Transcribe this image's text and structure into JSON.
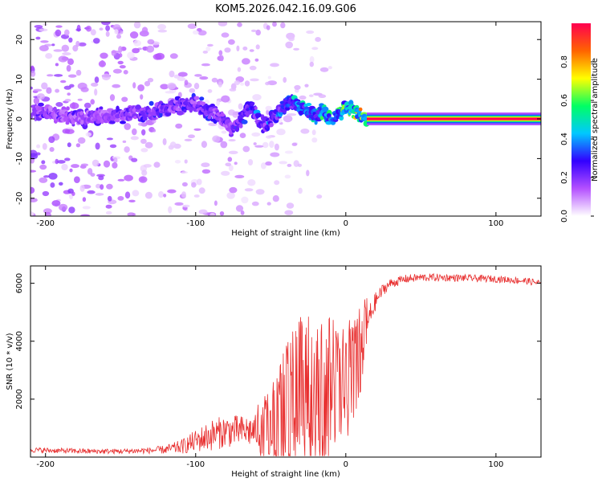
{
  "title": "KOM5.2026.042.16.09.G06",
  "chart_data": [
    {
      "type": "heatmap",
      "name": "spectrogram",
      "xlabel": "Height of straight line (km)",
      "ylabel": "Frequency (Hz)",
      "xlim": [
        -210,
        130
      ],
      "ylim": [
        -24.5,
        24.5
      ],
      "x_ticks": [
        -200,
        -100,
        0,
        100
      ],
      "y_ticks": [
        -20,
        -10,
        0,
        10,
        20
      ],
      "x_tick_labels": [
        "-200",
        "-100",
        "0",
        "100"
      ],
      "y_tick_labels": [
        "-20",
        "-10",
        "0",
        "10",
        "20"
      ],
      "colorbar": {
        "label": "Normalized spectral amplitude",
        "range": [
          0,
          1
        ],
        "ticks": [
          0,
          0.2,
          0.4,
          0.6,
          0.8
        ],
        "tick_labels": [
          "0.0",
          "0.2",
          "0.4",
          "0.6",
          "0.8"
        ],
        "colormap": [
          "#ffffff",
          "#b450ff",
          "#3200ff",
          "#00c8ff",
          "#00ff64",
          "#ffff00",
          "#ff6400",
          "#ff0050"
        ]
      },
      "ridge": {
        "x": [
          -205,
          -190,
          -175,
          -160,
          -145,
          -130,
          -115,
          -100,
          -92,
          -85,
          -80,
          -75,
          -68,
          -62,
          -55,
          -48,
          -42,
          -36,
          -30,
          -25,
          -20,
          -15,
          -10,
          -5,
          0,
          5,
          10,
          14
        ],
        "f": [
          2,
          1,
          0,
          1,
          1,
          2,
          3,
          4,
          2,
          1,
          -1,
          -3,
          1,
          3,
          -2,
          0,
          3,
          4,
          3,
          2,
          1,
          2,
          0,
          1,
          3,
          2,
          1,
          0
        ],
        "amp": [
          0.25,
          0.25,
          0.25,
          0.25,
          0.28,
          0.3,
          0.3,
          0.32,
          0.35,
          0.3,
          0.3,
          0.32,
          0.35,
          0.4,
          0.35,
          0.38,
          0.45,
          0.45,
          0.5,
          0.55,
          0.55,
          0.6,
          0.55,
          0.6,
          0.65,
          0.7,
          0.8,
          0.9
        ]
      },
      "line": {
        "x_start": 14,
        "x_end": 130,
        "f": 0,
        "amp": 1.0
      }
    },
    {
      "type": "line",
      "name": "snr",
      "xlabel": "Height of straight line (km)",
      "ylabel": "SNR (10 * v/v)",
      "xlim": [
        -210,
        130
      ],
      "ylim": [
        0,
        6600
      ],
      "x_ticks": [
        -200,
        -100,
        0,
        100
      ],
      "y_ticks": [
        2000,
        4000,
        6000
      ],
      "x_tick_labels": [
        "-200",
        "-100",
        "0",
        "100"
      ],
      "y_tick_labels": [
        "2000",
        "4000",
        "6000"
      ],
      "color": "#e83030",
      "envelope": {
        "x": [
          -210,
          -190,
          -170,
          -150,
          -130,
          -120,
          -110,
          -100,
          -90,
          -80,
          -70,
          -60,
          -50,
          -45,
          -40,
          -35,
          -30,
          -25,
          -20,
          -15,
          -10,
          -5,
          0,
          5,
          10,
          15,
          20,
          25,
          30,
          40,
          50,
          60,
          80,
          100,
          120,
          130
        ],
        "y": [
          250,
          220,
          200,
          200,
          230,
          260,
          350,
          550,
          750,
          900,
          900,
          900,
          1100,
          1300,
          1700,
          1900,
          2300,
          2200,
          2100,
          2200,
          2400,
          2300,
          2500,
          3000,
          3800,
          4700,
          5400,
          5800,
          6000,
          6150,
          6200,
          6200,
          6180,
          6150,
          6080,
          6000
        ],
        "spread": [
          150,
          150,
          150,
          150,
          180,
          250,
          400,
          650,
          900,
          950,
          900,
          950,
          1300,
          1700,
          2200,
          2600,
          2700,
          2700,
          2700,
          2600,
          2400,
          2400,
          2300,
          2000,
          1500,
          900,
          500,
          350,
          280,
          250,
          230,
          220,
          200,
          200,
          200,
          200
        ]
      }
    }
  ]
}
